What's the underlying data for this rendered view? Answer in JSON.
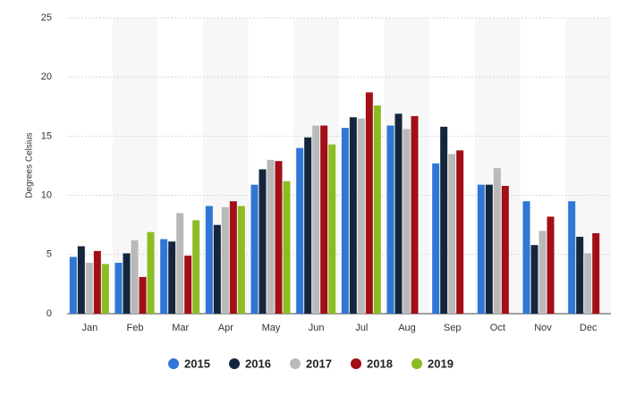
{
  "chart_data": {
    "type": "bar",
    "y_label": "Degrees Celsius",
    "categories": [
      "Jan",
      "Feb",
      "Mar",
      "Apr",
      "May",
      "Jun",
      "Jul",
      "Aug",
      "Sep",
      "Oct",
      "Nov",
      "Dec"
    ],
    "series": [
      {
        "name": "2015",
        "color": "#2f76d6",
        "values": [
          4.8,
          4.3,
          6.3,
          9.1,
          10.9,
          14.0,
          15.7,
          15.9,
          12.7,
          10.9,
          9.5,
          9.5
        ]
      },
      {
        "name": "2016",
        "color": "#14263d",
        "values": [
          5.7,
          5.1,
          6.1,
          7.5,
          12.2,
          14.9,
          16.6,
          16.9,
          15.8,
          10.9,
          5.8,
          6.5
        ]
      },
      {
        "name": "2017",
        "color": "#b9b9b9",
        "values": [
          4.3,
          6.2,
          8.5,
          9.0,
          13.0,
          15.9,
          16.5,
          15.6,
          13.5,
          12.3,
          7.0,
          5.1
        ]
      },
      {
        "name": "2018",
        "color": "#a10f17",
        "values": [
          5.3,
          3.1,
          4.9,
          9.5,
          12.9,
          15.9,
          18.7,
          16.7,
          13.8,
          10.8,
          8.2,
          6.8
        ]
      },
      {
        "name": "2019",
        "color": "#8cbc23",
        "values": [
          4.2,
          6.9,
          7.9,
          9.1,
          11.2,
          14.3,
          17.6,
          null,
          null,
          null,
          null,
          null
        ]
      }
    ],
    "ylim": [
      0,
      25
    ],
    "yticks": [
      0,
      5,
      10,
      15,
      20,
      25
    ],
    "grid": true
  }
}
